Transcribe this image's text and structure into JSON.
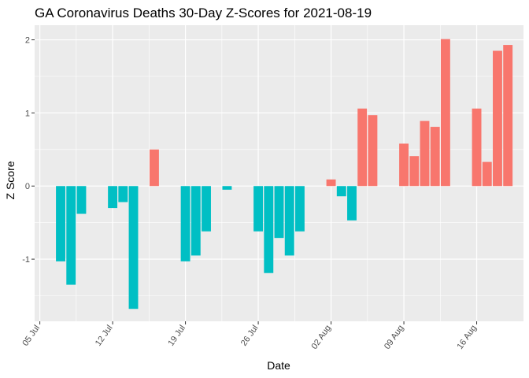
{
  "chart_data": {
    "type": "bar",
    "title": "GA Coronavirus Deaths 30-Day Z-Scores for 2021-08-19",
    "xlabel": "Date",
    "ylabel": "Z Score",
    "ylim": [
      -1.85,
      2.2
    ],
    "xlim": [
      "2021-07-05",
      "2021-08-20"
    ],
    "yticks": [
      -1,
      0,
      1,
      2
    ],
    "xticks": [
      {
        "date": "2021-07-05",
        "label": "05 Jul"
      },
      {
        "date": "2021-07-12",
        "label": "12 Jul"
      },
      {
        "date": "2021-07-19",
        "label": "19 Jul"
      },
      {
        "date": "2021-07-26",
        "label": "26 Jul"
      },
      {
        "date": "2021-08-02",
        "label": "02 Aug"
      },
      {
        "date": "2021-08-09",
        "label": "09 Aug"
      },
      {
        "date": "2021-08-16",
        "label": "16 Aug"
      }
    ],
    "colors": {
      "positive": "#F8766D",
      "negative": "#00BFC4"
    },
    "grid": true,
    "panel_background": "#EBEBEB",
    "legend": "none",
    "points": [
      {
        "date": "2021-07-07",
        "value": -1.03
      },
      {
        "date": "2021-07-08",
        "value": -1.35
      },
      {
        "date": "2021-07-09",
        "value": -0.38
      },
      {
        "date": "2021-07-12",
        "value": -0.3
      },
      {
        "date": "2021-07-13",
        "value": -0.22
      },
      {
        "date": "2021-07-14",
        "value": -1.68
      },
      {
        "date": "2021-07-16",
        "value": 0.5
      },
      {
        "date": "2021-07-19",
        "value": -1.03
      },
      {
        "date": "2021-07-20",
        "value": -0.95
      },
      {
        "date": "2021-07-21",
        "value": -0.62
      },
      {
        "date": "2021-07-23",
        "value": -0.05
      },
      {
        "date": "2021-07-26",
        "value": -0.62
      },
      {
        "date": "2021-07-27",
        "value": -1.19
      },
      {
        "date": "2021-07-28",
        "value": -0.71
      },
      {
        "date": "2021-07-29",
        "value": -0.95
      },
      {
        "date": "2021-07-30",
        "value": -0.62
      },
      {
        "date": "2021-08-02",
        "value": 0.09
      },
      {
        "date": "2021-08-03",
        "value": -0.14
      },
      {
        "date": "2021-08-04",
        "value": -0.47
      },
      {
        "date": "2021-08-05",
        "value": 1.06
      },
      {
        "date": "2021-08-06",
        "value": 0.97
      },
      {
        "date": "2021-08-09",
        "value": 0.58
      },
      {
        "date": "2021-08-10",
        "value": 0.41
      },
      {
        "date": "2021-08-11",
        "value": 0.89
      },
      {
        "date": "2021-08-12",
        "value": 0.81
      },
      {
        "date": "2021-08-13",
        "value": 2.01
      },
      {
        "date": "2021-08-16",
        "value": 1.06
      },
      {
        "date": "2021-08-17",
        "value": 0.33
      },
      {
        "date": "2021-08-18",
        "value": 1.85
      },
      {
        "date": "2021-08-19",
        "value": 1.93
      }
    ]
  }
}
